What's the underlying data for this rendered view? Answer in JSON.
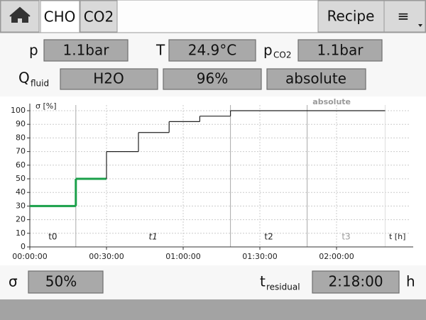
{
  "tabs": {
    "cho": "CHO",
    "co2": "CO2",
    "recipe": "Recipe",
    "menu": "≡"
  },
  "fields": {
    "p": {
      "label": "p",
      "value": "1.1bar"
    },
    "T": {
      "label": "T",
      "value": "24.9°C"
    },
    "pco2": {
      "label": "p",
      "subscript": "CO2",
      "value": "1.1bar"
    },
    "qfluid": {
      "label": "Q",
      "subscript": "fluid",
      "values": [
        "H2O",
        "96%",
        "absolute"
      ]
    },
    "sigma": {
      "label": "σ",
      "value": "50%"
    },
    "tresidual": {
      "label": "t",
      "subscript": "residual",
      "value": "2:18:00",
      "unit": "h"
    }
  },
  "chart_data": {
    "type": "step",
    "y_label": "σ [%]",
    "x_label": "t [h]",
    "annotation": "absolute",
    "xlim": [
      0,
      150
    ],
    "ylim": [
      0,
      100
    ],
    "xticks": [
      {
        "value": 0,
        "label": "00:00:00"
      },
      {
        "value": 30,
        "label": "00:30:00"
      },
      {
        "value": 60,
        "label": "01:00:00"
      },
      {
        "value": 90,
        "label": "01:30:00"
      },
      {
        "value": 120,
        "label": "02:00:00"
      }
    ],
    "yticks": [
      0,
      10,
      20,
      30,
      40,
      50,
      60,
      70,
      80,
      90,
      100
    ],
    "grid": true,
    "series": [
      {
        "color": "#1aa04a",
        "x": [
          0,
          18,
          30
        ],
        "values": [
          30,
          50,
          50
        ]
      },
      {
        "color": "#222222",
        "x": [
          30,
          30,
          42.5,
          54.5,
          66.5,
          78.5,
          139
        ],
        "values": [
          50,
          70,
          84,
          92,
          96,
          100,
          100
        ]
      }
    ],
    "phases": {
      "labels": [
        "t0",
        "t1",
        "t2",
        "t3"
      ],
      "bounds": [
        0,
        18,
        78.5,
        108.5,
        139
      ]
    }
  }
}
